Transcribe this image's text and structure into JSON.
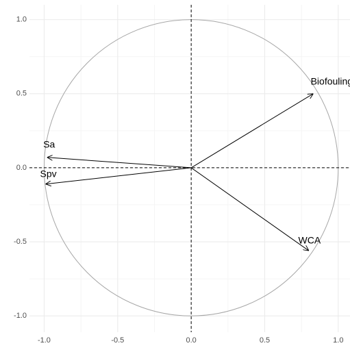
{
  "chart_data": {
    "type": "vector",
    "vectors": [
      {
        "label": "Biofouling",
        "x": 0.83,
        "y": 0.5
      },
      {
        "label": "Sa",
        "x": -0.98,
        "y": 0.07
      },
      {
        "label": "Spv",
        "x": -0.99,
        "y": -0.11
      },
      {
        "label": "WCA",
        "x": 0.8,
        "y": -0.56
      }
    ],
    "xlim": [
      -1.1,
      1.08
    ],
    "ylim": [
      -1.11,
      1.1
    ],
    "xticks": [
      {
        "value": -1,
        "label": "-1.0"
      },
      -0.5,
      {
        "value": 0,
        "label": "0.0"
      },
      0.5,
      {
        "value": 1,
        "label": "1.0"
      }
    ],
    "yticks": [
      {
        "value": -1,
        "label": "-1.0"
      },
      -0.5,
      {
        "value": 0,
        "label": "0.0"
      },
      0.5,
      {
        "value": 1,
        "label": "1.0"
      }
    ],
    "grid": true,
    "hline": 0,
    "vline": 0,
    "circle_radius": 1,
    "circle_color": "#a6a6a6",
    "arrow_color": "#000000"
  }
}
